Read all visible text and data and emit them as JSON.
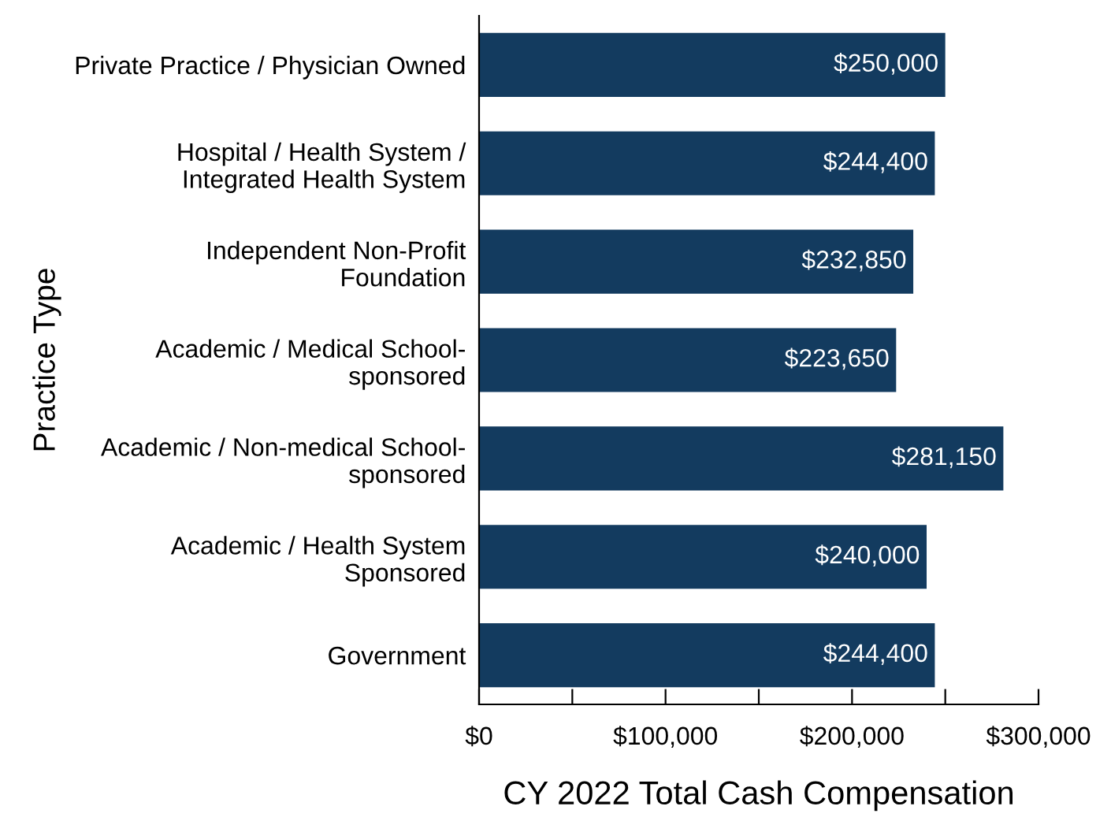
{
  "chart_data": {
    "type": "bar",
    "orientation": "horizontal",
    "categories": [
      "Private Practice / Physician Owned",
      "Hospital / Health System /\nIntegrated Health System",
      "Independent Non-Profit\nFoundation",
      "Academic / Medical School-\nsponsored",
      "Academic / Non-medical School-\nsponsored",
      "Academic / Health System\nSponsored",
      "Government"
    ],
    "values": [
      250000,
      244400,
      232850,
      223650,
      281150,
      240000,
      244400
    ],
    "value_labels": [
      "$250,000",
      "$244,400",
      "$232,850",
      "$223,650",
      "$281,150",
      "$240,000",
      "$244,400"
    ],
    "color": "#133b5f",
    "xlim": [
      0,
      300000
    ],
    "xticks": [
      {
        "value": 0,
        "label": "$0"
      },
      {
        "value": 50000,
        "label": null
      },
      {
        "value": 100000,
        "label": "$100,000"
      },
      {
        "value": 150000,
        "label": null
      },
      {
        "value": 200000,
        "label": "$200,000"
      },
      {
        "value": 250000,
        "label": null
      },
      {
        "value": 300000,
        "label": "$300,000"
      }
    ],
    "xlabel": "CY 2022 Total Cash Compensation",
    "ylabel": "Practice Type",
    "grid": false,
    "legend": false
  }
}
